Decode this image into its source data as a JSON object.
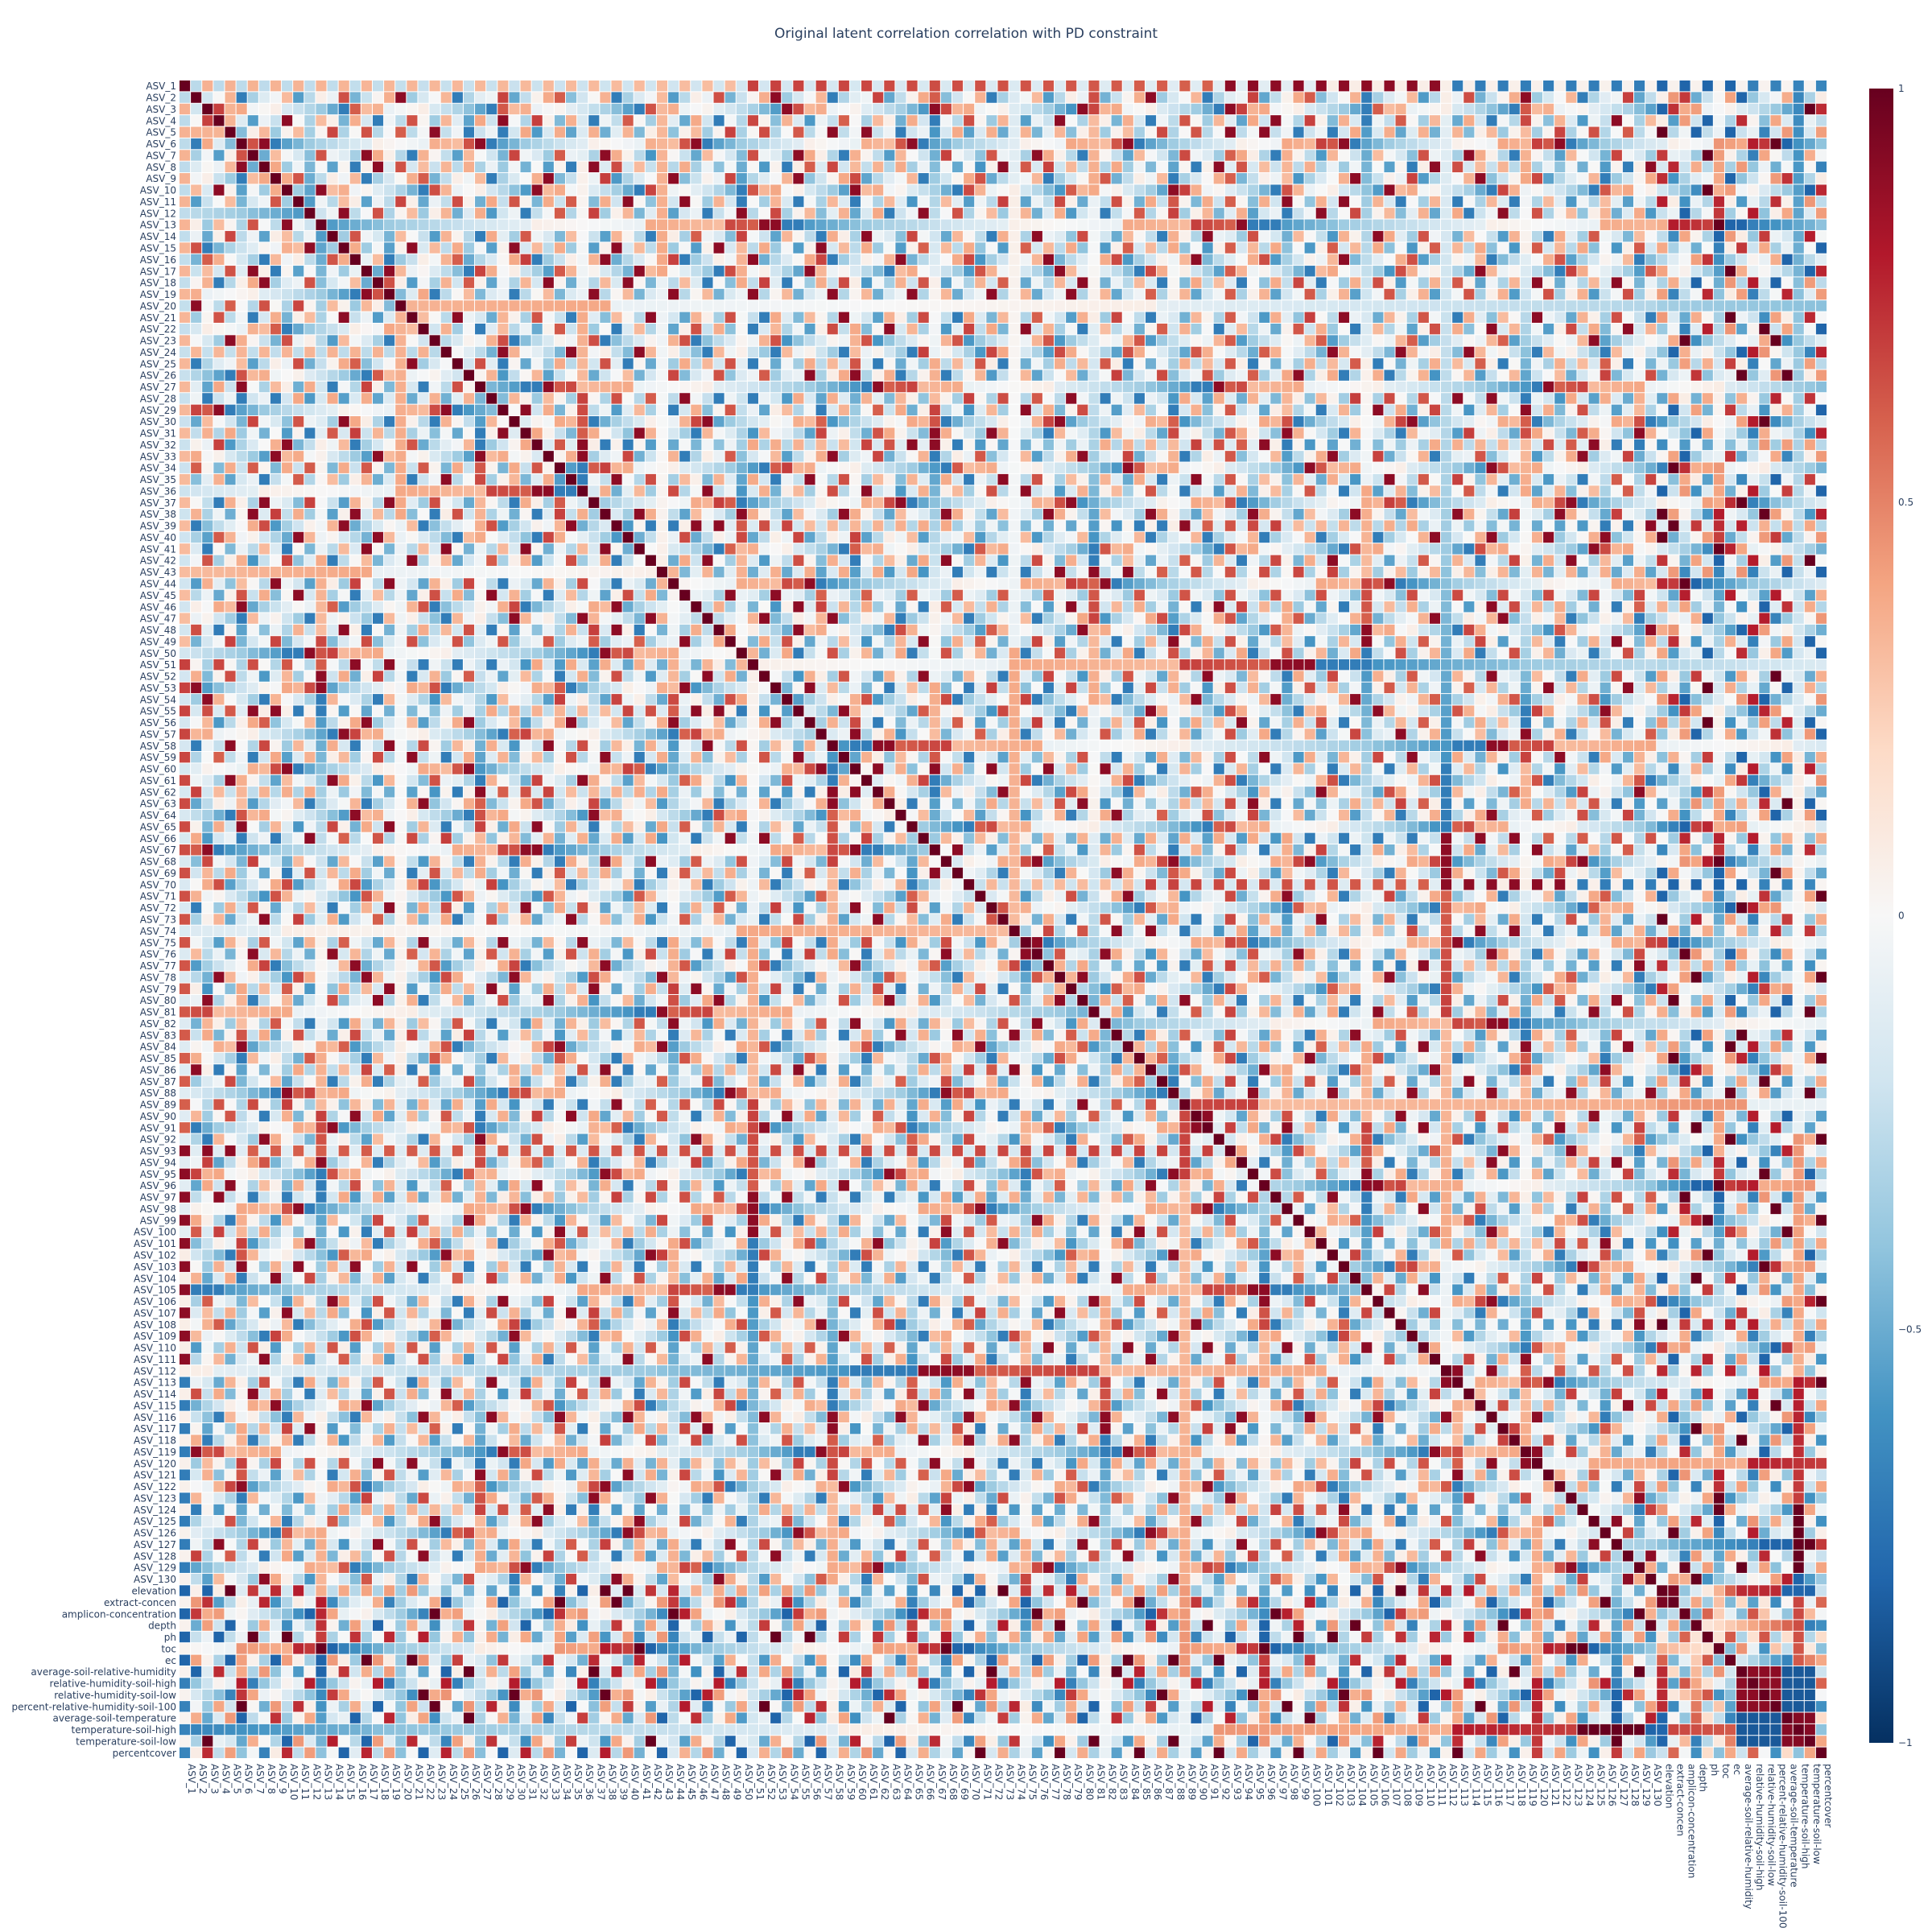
{
  "chart_data": {
    "type": "heatmap",
    "title": "Original latent correlation correlation with PD constraint",
    "asv_count": 130,
    "env_labels": [
      "elevation",
      "extract-concen",
      "amplicon-concentration",
      "depth",
      "ph",
      "toc",
      "ec",
      "average-soil-relative-humidity",
      "relative-humidity-soil-high",
      "relative-humidity-soil-low",
      "percent-relative-humidity-soil-100",
      "average-soil-temperature",
      "temperature-soil-high",
      "temperature-soil-low",
      "percentcover"
    ],
    "zmin": -1,
    "zmax": 1,
    "colorscale": "RdBu",
    "colorbar_ticks": [
      {
        "value": 1,
        "label": "1"
      },
      {
        "value": 0.5,
        "label": "0.5"
      },
      {
        "value": 0,
        "label": "0"
      },
      {
        "value": -0.5,
        "label": "−0.5"
      },
      {
        "value": -1,
        "label": "−1"
      }
    ],
    "diagonal": 1,
    "values_note": "off-diagonal values approximate"
  }
}
